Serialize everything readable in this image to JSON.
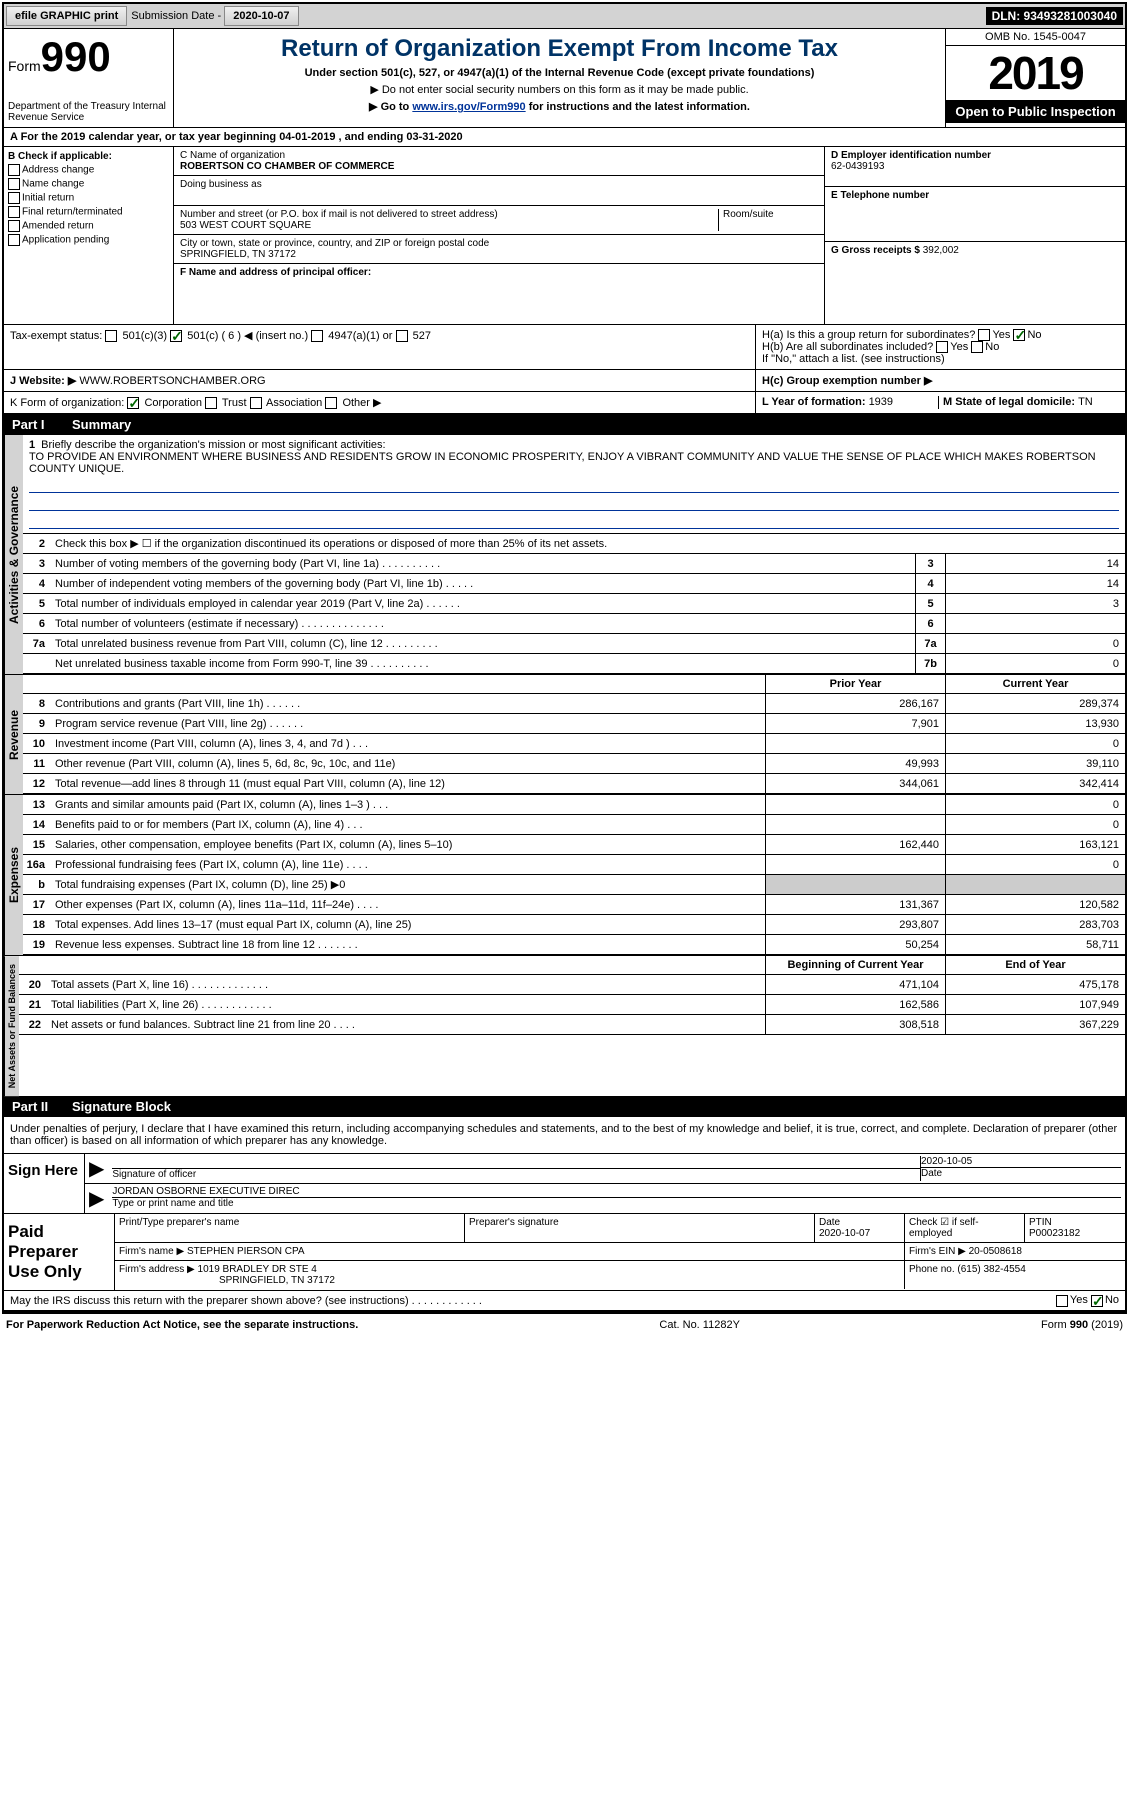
{
  "topbar": {
    "efile": "efile GRAPHIC print",
    "subdate_label": "Submission Date - ",
    "subdate": "2020-10-07",
    "dln": "DLN: 93493281003040"
  },
  "header": {
    "form_label": "Form",
    "form_num": "990",
    "dept": "Department of the Treasury\nInternal Revenue Service",
    "title": "Return of Organization Exempt From Income Tax",
    "subtitle": "Under section 501(c), 527, or 4947(a)(1) of the Internal Revenue Code (except private foundations)",
    "instr1": "▶ Do not enter social security numbers on this form as it may be made public.",
    "instr2": "▶ Go to ",
    "instr2_link": "www.irs.gov/Form990",
    "instr2_after": " for instructions and the latest information.",
    "omb": "OMB No. 1545-0047",
    "year": "2019",
    "public": "Open to Public Inspection"
  },
  "period": "A For the 2019 calendar year, or tax year beginning 04-01-2019    , and ending 03-31-2020",
  "sectionB": {
    "check_label": "B Check if applicable:",
    "checks": [
      "Address change",
      "Name change",
      "Initial return",
      "Final return/terminated",
      "Amended return",
      "Application pending"
    ],
    "c_label": "C Name of organization",
    "org_name": "ROBERTSON CO CHAMBER OF COMMERCE",
    "dba_label": "Doing business as",
    "addr_label": "Number and street (or P.O. box if mail is not delivered to street address)",
    "room_label": "Room/suite",
    "addr": "503 WEST COURT SQUARE",
    "city_label": "City or town, state or province, country, and ZIP or foreign postal code",
    "city": "SPRINGFIELD, TN  37172",
    "f_label": "F Name and address of principal officer:",
    "d_label": "D Employer identification number",
    "ein": "62-0439193",
    "e_label": "E Telephone number",
    "g_label": "G Gross receipts $ ",
    "g_val": "392,002"
  },
  "h": {
    "ha": "H(a)  Is this a group return for subordinates?",
    "hb": "H(b)  Are all subordinates included?",
    "hb_note": "If \"No,\" attach a list. (see instructions)",
    "hc": "H(c)  Group exemption number ▶",
    "yes": "Yes",
    "no": "No"
  },
  "tax_status": {
    "label": "Tax-exempt status:",
    "opts": [
      "501(c)(3)",
      "501(c) ( 6 ) ◀ (insert no.)",
      "4947(a)(1) or",
      "527"
    ]
  },
  "website": {
    "label": "J   Website: ▶",
    "val": "WWW.ROBERTSONCHAMBER.ORG"
  },
  "k_row": {
    "label": "K Form of organization:",
    "opts": [
      "Corporation",
      "Trust",
      "Association",
      "Other ▶"
    ],
    "l": "L Year of formation: ",
    "l_val": "1939",
    "m": "M State of legal domicile: ",
    "m_val": "TN"
  },
  "parts": {
    "p1": "Part I",
    "p1t": "Summary",
    "p2": "Part II",
    "p2t": "Signature Block"
  },
  "summary": {
    "q1": "Briefly describe the organization's mission or most significant activities:",
    "mission": "TO PROVIDE AN ENVIRONMENT WHERE BUSINESS AND RESIDENTS GROW IN ECONOMIC PROSPERITY, ENJOY A VIBRANT COMMUNITY AND VALUE THE SENSE OF PLACE WHICH MAKES ROBERTSON COUNTY UNIQUE.",
    "q2": "Check this box ▶ ☐  if the organization discontinued its operations or disposed of more than 25% of its net assets.",
    "lines": [
      {
        "n": "3",
        "d": "Number of voting members of the governing body (Part VI, line 1a)   .   .   .   .   .   .   .   .   .   .",
        "box": "3",
        "v": "14"
      },
      {
        "n": "4",
        "d": "Number of independent voting members of the governing body (Part VI, line 1b)   .   .   .   .   .",
        "box": "4",
        "v": "14"
      },
      {
        "n": "5",
        "d": "Total number of individuals employed in calendar year 2019 (Part V, line 2a)   .   .   .   .   .   .",
        "box": "5",
        "v": "3"
      },
      {
        "n": "6",
        "d": "Total number of volunteers (estimate if necessary)    .   .   .   .   .   .   .   .   .   .   .   .   .   .",
        "box": "6",
        "v": ""
      },
      {
        "n": "7a",
        "d": "Total unrelated business revenue from Part VIII, column (C), line 12   .   .   .   .   .   .   .   .   .",
        "box": "7a",
        "v": "0"
      },
      {
        "n": "",
        "d": "Net unrelated business taxable income from Form 990-T, line 39    .   .   .   .   .   .   .   .   .   .",
        "box": "7b",
        "v": "0"
      }
    ],
    "prior_label": "Prior Year",
    "current_label": "Current Year",
    "revenue": [
      {
        "n": "8",
        "d": "Contributions and grants (Part VIII, line 1h)   .   .   .   .   .   .",
        "p": "286,167",
        "c": "289,374"
      },
      {
        "n": "9",
        "d": "Program service revenue (Part VIII, line 2g)   .   .   .   .   .   .",
        "p": "7,901",
        "c": "13,930"
      },
      {
        "n": "10",
        "d": "Investment income (Part VIII, column (A), lines 3, 4, and 7d )   .   .   .",
        "p": "",
        "c": "0"
      },
      {
        "n": "11",
        "d": "Other revenue (Part VIII, column (A), lines 5, 6d, 8c, 9c, 10c, and 11e)",
        "p": "49,993",
        "c": "39,110"
      },
      {
        "n": "12",
        "d": "Total revenue—add lines 8 through 11 (must equal Part VIII, column (A), line 12)",
        "p": "344,061",
        "c": "342,414"
      }
    ],
    "expenses": [
      {
        "n": "13",
        "d": "Grants and similar amounts paid (Part IX, column (A), lines 1–3 )   .   .   .",
        "p": "",
        "c": "0"
      },
      {
        "n": "14",
        "d": "Benefits paid to or for members (Part IX, column (A), line 4)   .   .   .",
        "p": "",
        "c": "0"
      },
      {
        "n": "15",
        "d": "Salaries, other compensation, employee benefits (Part IX, column (A), lines 5–10)",
        "p": "162,440",
        "c": "163,121"
      },
      {
        "n": "16a",
        "d": "Professional fundraising fees (Part IX, column (A), line 11e)   .   .   .   .",
        "p": "",
        "c": "0"
      },
      {
        "n": "b",
        "d": "Total fundraising expenses (Part IX, column (D), line 25) ▶0",
        "p": "shaded",
        "c": "shaded"
      },
      {
        "n": "17",
        "d": "Other expenses (Part IX, column (A), lines 11a–11d, 11f–24e)   .   .   .   .",
        "p": "131,367",
        "c": "120,582"
      },
      {
        "n": "18",
        "d": "Total expenses. Add lines 13–17 (must equal Part IX, column (A), line 25)",
        "p": "293,807",
        "c": "283,703"
      },
      {
        "n": "19",
        "d": "Revenue less expenses. Subtract line 18 from line 12   .   .   .   .   .   .   .",
        "p": "50,254",
        "c": "58,711"
      }
    ],
    "beg_label": "Beginning of Current Year",
    "end_label": "End of Year",
    "netassets": [
      {
        "n": "20",
        "d": "Total assets (Part X, line 16)   .   .   .   .   .   .   .   .   .   .   .   .   .",
        "p": "471,104",
        "c": "475,178"
      },
      {
        "n": "21",
        "d": "Total liabilities (Part X, line 26)   .   .   .   .   .   .   .   .   .   .   .   .",
        "p": "162,586",
        "c": "107,949"
      },
      {
        "n": "22",
        "d": "Net assets or fund balances. Subtract line 21 from line 20   .   .   .   .",
        "p": "308,518",
        "c": "367,229"
      }
    ],
    "tabs": {
      "act": "Activities & Governance",
      "rev": "Revenue",
      "exp": "Expenses",
      "net": "Net Assets or Fund Balances"
    }
  },
  "sig": {
    "penalty": "Under penalties of perjury, I declare that I have examined this return, including accompanying schedules and statements, and to the best of my knowledge and belief, it is true, correct, and complete. Declaration of preparer (other than officer) is based on all information of which preparer has any knowledge.",
    "sign_here": "Sign Here",
    "sig_officer": "Signature of officer",
    "date_label": "Date",
    "sig_date": "2020-10-05",
    "name": "JORDAN OSBORNE EXECUTIVE DIREC",
    "name_label": "Type or print name and title",
    "paid": "Paid Preparer Use Only",
    "prep_name_label": "Print/Type preparer's name",
    "prep_sig_label": "Preparer's signature",
    "prep_date": "2020-10-07",
    "check_self": "Check ☑ if self-employed",
    "ptin_label": "PTIN",
    "ptin": "P00023182",
    "firm_name_label": "Firm's name     ▶ ",
    "firm_name": "STEPHEN PIERSON CPA",
    "firm_ein_label": "Firm's EIN ▶ ",
    "firm_ein": "20-0508618",
    "firm_addr_label": "Firm's address ▶ ",
    "firm_addr": "1019 BRADLEY DR STE 4",
    "firm_city": "SPRINGFIELD, TN  37172",
    "phone_label": "Phone no. ",
    "phone": "(615) 382-4554",
    "discuss": "May the IRS discuss this return with the preparer shown above? (see instructions)    .    .    .    .    .    .    .    .    .    .    .    ."
  },
  "footer": {
    "pra": "For Paperwork Reduction Act Notice, see the separate instructions.",
    "cat": "Cat. No. 11282Y",
    "form": "Form 990 (2019)"
  }
}
